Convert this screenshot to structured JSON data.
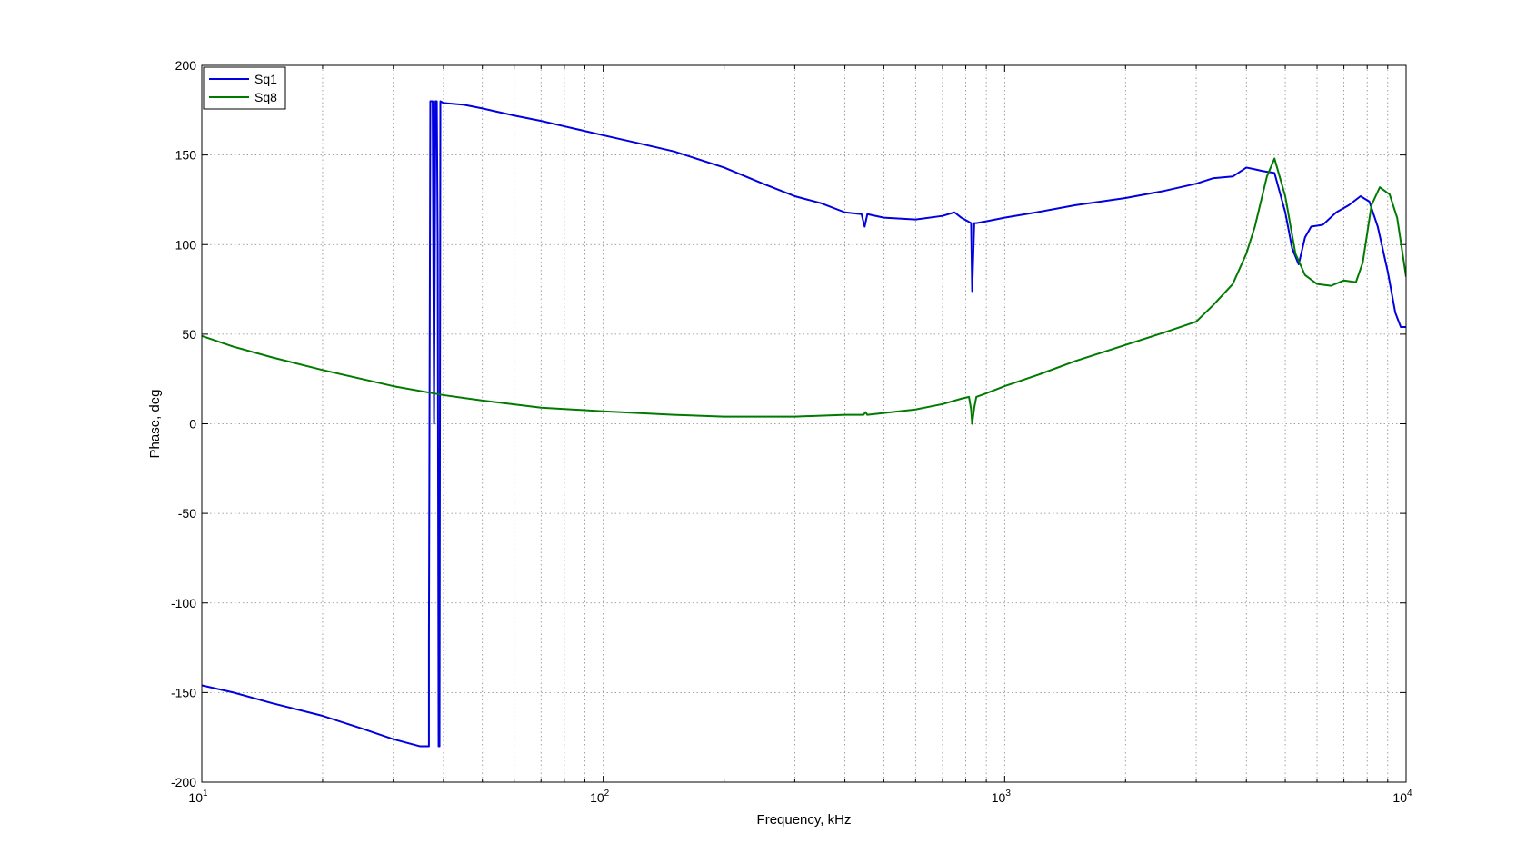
{
  "chart_data": {
    "type": "line",
    "xscale": "log",
    "xlim": [
      10,
      10000
    ],
    "ylim": [
      -200,
      200
    ],
    "xlabel": "Frequency, kHz",
    "ylabel": "Phase, deg",
    "grid": true,
    "legend_placement": "top-left",
    "x_tick_labels": [
      {
        "base": "10",
        "exp": "1"
      },
      {
        "base": "10",
        "exp": "2"
      },
      {
        "base": "10",
        "exp": "3"
      },
      {
        "base": "10",
        "exp": "4"
      }
    ],
    "y_ticks": [
      -200,
      -150,
      -100,
      -50,
      0,
      50,
      100,
      150,
      200
    ],
    "series": [
      {
        "name": "Sq1",
        "color": "#0000e0",
        "points": [
          [
            10,
            -146
          ],
          [
            12,
            -150
          ],
          [
            15,
            -156
          ],
          [
            20,
            -163
          ],
          [
            25,
            -170
          ],
          [
            30,
            -176
          ],
          [
            35,
            -180
          ],
          [
            36.8,
            -180
          ],
          [
            36.8,
            -120
          ],
          [
            37.1,
            180
          ],
          [
            37.6,
            180
          ],
          [
            37.9,
            0
          ],
          [
            38.2,
            180
          ],
          [
            38.5,
            180
          ],
          [
            38.7,
            100
          ],
          [
            38.9,
            -180
          ],
          [
            39.1,
            -180
          ],
          [
            39.3,
            180
          ],
          [
            40,
            179
          ],
          [
            45,
            178
          ],
          [
            50,
            176
          ],
          [
            60,
            172
          ],
          [
            70,
            169
          ],
          [
            80,
            166
          ],
          [
            100,
            161
          ],
          [
            120,
            157
          ],
          [
            150,
            152
          ],
          [
            200,
            143
          ],
          [
            250,
            134
          ],
          [
            300,
            127
          ],
          [
            350,
            123
          ],
          [
            400,
            118
          ],
          [
            440,
            117
          ],
          [
            448,
            110
          ],
          [
            455,
            117
          ],
          [
            500,
            115
          ],
          [
            600,
            114
          ],
          [
            700,
            116
          ],
          [
            750,
            118
          ],
          [
            780,
            115
          ],
          [
            810,
            113
          ],
          [
            825,
            112
          ],
          [
            830,
            74
          ],
          [
            840,
            112
          ],
          [
            850,
            112
          ],
          [
            900,
            113
          ],
          [
            1000,
            115
          ],
          [
            1200,
            118
          ],
          [
            1500,
            122
          ],
          [
            2000,
            126
          ],
          [
            2500,
            130
          ],
          [
            3000,
            134
          ],
          [
            3300,
            137
          ],
          [
            3700,
            138
          ],
          [
            4000,
            143
          ],
          [
            4200,
            142
          ],
          [
            4400,
            141
          ],
          [
            4700,
            140
          ],
          [
            5000,
            118
          ],
          [
            5200,
            98
          ],
          [
            5400,
            89
          ],
          [
            5600,
            104
          ],
          [
            5800,
            110
          ],
          [
            6200,
            111
          ],
          [
            6700,
            118
          ],
          [
            7200,
            122
          ],
          [
            7700,
            127
          ],
          [
            8100,
            124
          ],
          [
            8500,
            110
          ],
          [
            9000,
            85
          ],
          [
            9400,
            62
          ],
          [
            9700,
            54
          ],
          [
            10000,
            54
          ]
        ]
      },
      {
        "name": "Sq8",
        "color": "#007a00",
        "points": [
          [
            10,
            49
          ],
          [
            12,
            43
          ],
          [
            15,
            37
          ],
          [
            20,
            30
          ],
          [
            30,
            21
          ],
          [
            40,
            16
          ],
          [
            50,
            13
          ],
          [
            70,
            9
          ],
          [
            100,
            7
          ],
          [
            150,
            5
          ],
          [
            200,
            4
          ],
          [
            300,
            4
          ],
          [
            400,
            5
          ],
          [
            445,
            5
          ],
          [
            450,
            6.5
          ],
          [
            455,
            5
          ],
          [
            500,
            6
          ],
          [
            600,
            8
          ],
          [
            700,
            11
          ],
          [
            780,
            14
          ],
          [
            815,
            15
          ],
          [
            825,
            8
          ],
          [
            830,
            0
          ],
          [
            840,
            9
          ],
          [
            850,
            15
          ],
          [
            900,
            17
          ],
          [
            1000,
            21
          ],
          [
            1200,
            27
          ],
          [
            1500,
            35
          ],
          [
            2000,
            44
          ],
          [
            2500,
            51
          ],
          [
            3000,
            57
          ],
          [
            3300,
            66
          ],
          [
            3700,
            78
          ],
          [
            4000,
            95
          ],
          [
            4200,
            110
          ],
          [
            4500,
            138
          ],
          [
            4700,
            148
          ],
          [
            5000,
            127
          ],
          [
            5300,
            95
          ],
          [
            5600,
            83
          ],
          [
            6000,
            78
          ],
          [
            6500,
            77
          ],
          [
            7000,
            80
          ],
          [
            7500,
            79
          ],
          [
            7800,
            90
          ],
          [
            8200,
            122
          ],
          [
            8600,
            132
          ],
          [
            9100,
            128
          ],
          [
            9500,
            115
          ],
          [
            10000,
            82
          ]
        ]
      }
    ]
  }
}
